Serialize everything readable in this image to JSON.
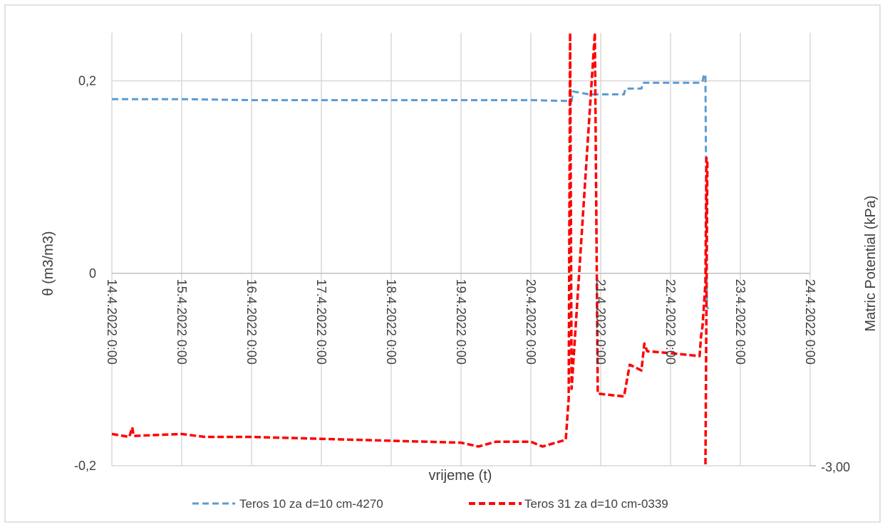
{
  "chart_data": {
    "type": "line",
    "title": "",
    "xlabel": "vrijeme (t)",
    "ylabel": "θ  (m3/m3)",
    "y2label": "Matric Potential (kPa)",
    "xlim": [
      "14.4.2022 0:00",
      "24.4.2022 0:00"
    ],
    "ylim": [
      -0.2,
      0.25
    ],
    "yticks": [
      -0.2,
      0,
      0.2
    ],
    "ytick_labels": [
      "-0,2",
      "0",
      "0,2"
    ],
    "y2_visible_ticks": [
      "-3,00"
    ],
    "x_tick_labels": [
      "14.4.2022 0:00",
      "15.4.2022 0:00",
      "16.4.2022 0:00",
      "17.4.2022 0:00",
      "18.4.2022 0:00",
      "19.4.2022 0:00",
      "20.4.2022 0:00",
      "21.4.2022 0:00",
      "22.4.2022 0:00",
      "23.4.2022 0:00",
      "24.4.2022 0:00"
    ],
    "grid": true,
    "legend_position": "bottom",
    "series": [
      {
        "name": "Teros 10 za d=10 cm-4270",
        "color": "#5b9bd5",
        "dash": "dashed",
        "axis": "left",
        "points": [
          [
            "14.4.2022 0:00",
            0.181
          ],
          [
            "15.4.2022 0:00",
            0.181
          ],
          [
            "16.4.2022 0:00",
            0.18
          ],
          [
            "17.4.2022 0:00",
            0.18
          ],
          [
            "18.4.2022 0:00",
            0.18
          ],
          [
            "19.4.2022 0:00",
            0.18
          ],
          [
            "20.4.2022 0:00",
            0.18
          ],
          [
            "20.4.2022 14:00",
            0.179
          ],
          [
            "20.4.2022 14:30",
            0.189
          ],
          [
            "20.4.2022 20:00",
            0.186
          ],
          [
            "21.4.2022 8:00",
            0.186
          ],
          [
            "21.4.2022 8:30",
            0.192
          ],
          [
            "21.4.2022 14:00",
            0.192
          ],
          [
            "21.4.2022 14:30",
            0.198
          ],
          [
            "22.4.2022 10:00",
            0.198
          ],
          [
            "22.4.2022 11:00",
            0.199
          ],
          [
            "22.4.2022 11:30",
            0.207
          ],
          [
            "22.4.2022 12:00",
            0.205
          ],
          [
            "22.4.2022 12:30",
            -0.035
          ],
          [
            "22.4.2022 13:00",
            -0.037
          ]
        ]
      },
      {
        "name": "Teros 31 za d=10 cm-0339",
        "color": "#ff0000",
        "dash": "dashed",
        "axis": "right",
        "points": [
          [
            "14.4.2022 0:00",
            -0.167
          ],
          [
            "14.4.2022 6:00",
            -0.17
          ],
          [
            "14.4.2022 7:00",
            -0.16
          ],
          [
            "14.4.2022 7:30",
            -0.169
          ],
          [
            "15.4.2022 0:00",
            -0.167
          ],
          [
            "15.4.2022 8:00",
            -0.17
          ],
          [
            "16.4.2022 0:00",
            -0.17
          ],
          [
            "17.4.2022 0:00",
            -0.172
          ],
          [
            "18.4.2022 0:00",
            -0.174
          ],
          [
            "19.4.2022 0:00",
            -0.176
          ],
          [
            "19.4.2022 6:00",
            -0.18
          ],
          [
            "19.4.2022 12:00",
            -0.175
          ],
          [
            "20.4.2022 0:00",
            -0.175
          ],
          [
            "20.4.2022 4:00",
            -0.18
          ],
          [
            "20.4.2022 12:00",
            -0.173
          ],
          [
            "20.4.2022 13:00",
            -0.13
          ],
          [
            "20.4.2022 13:30",
            0.3
          ],
          [
            "20.4.2022 14:00",
            -0.12
          ],
          [
            "20.4.2022 22:00",
            0.3
          ],
          [
            "20.4.2022 23:00",
            -0.125
          ],
          [
            "21.4.2022 8:00",
            -0.128
          ],
          [
            "21.4.2022 10:00",
            -0.095
          ],
          [
            "21.4.2022 14:00",
            -0.101
          ],
          [
            "21.4.2022 15:00",
            -0.073
          ],
          [
            "21.4.2022 16:00",
            -0.081
          ],
          [
            "22.4.2022 0:00",
            -0.083
          ],
          [
            "22.4.2022 10:00",
            -0.086
          ],
          [
            "22.4.2022 10:30",
            -0.065
          ],
          [
            "22.4.2022 11:00",
            -0.055
          ],
          [
            "22.4.2022 12:00",
            -0.01
          ],
          [
            "22.4.2022 12:20",
            0.12
          ],
          [
            "22.4.2022 12:40",
            0.118
          ],
          [
            "22.4.2022 12:00",
            -0.25
          ]
        ]
      }
    ]
  }
}
